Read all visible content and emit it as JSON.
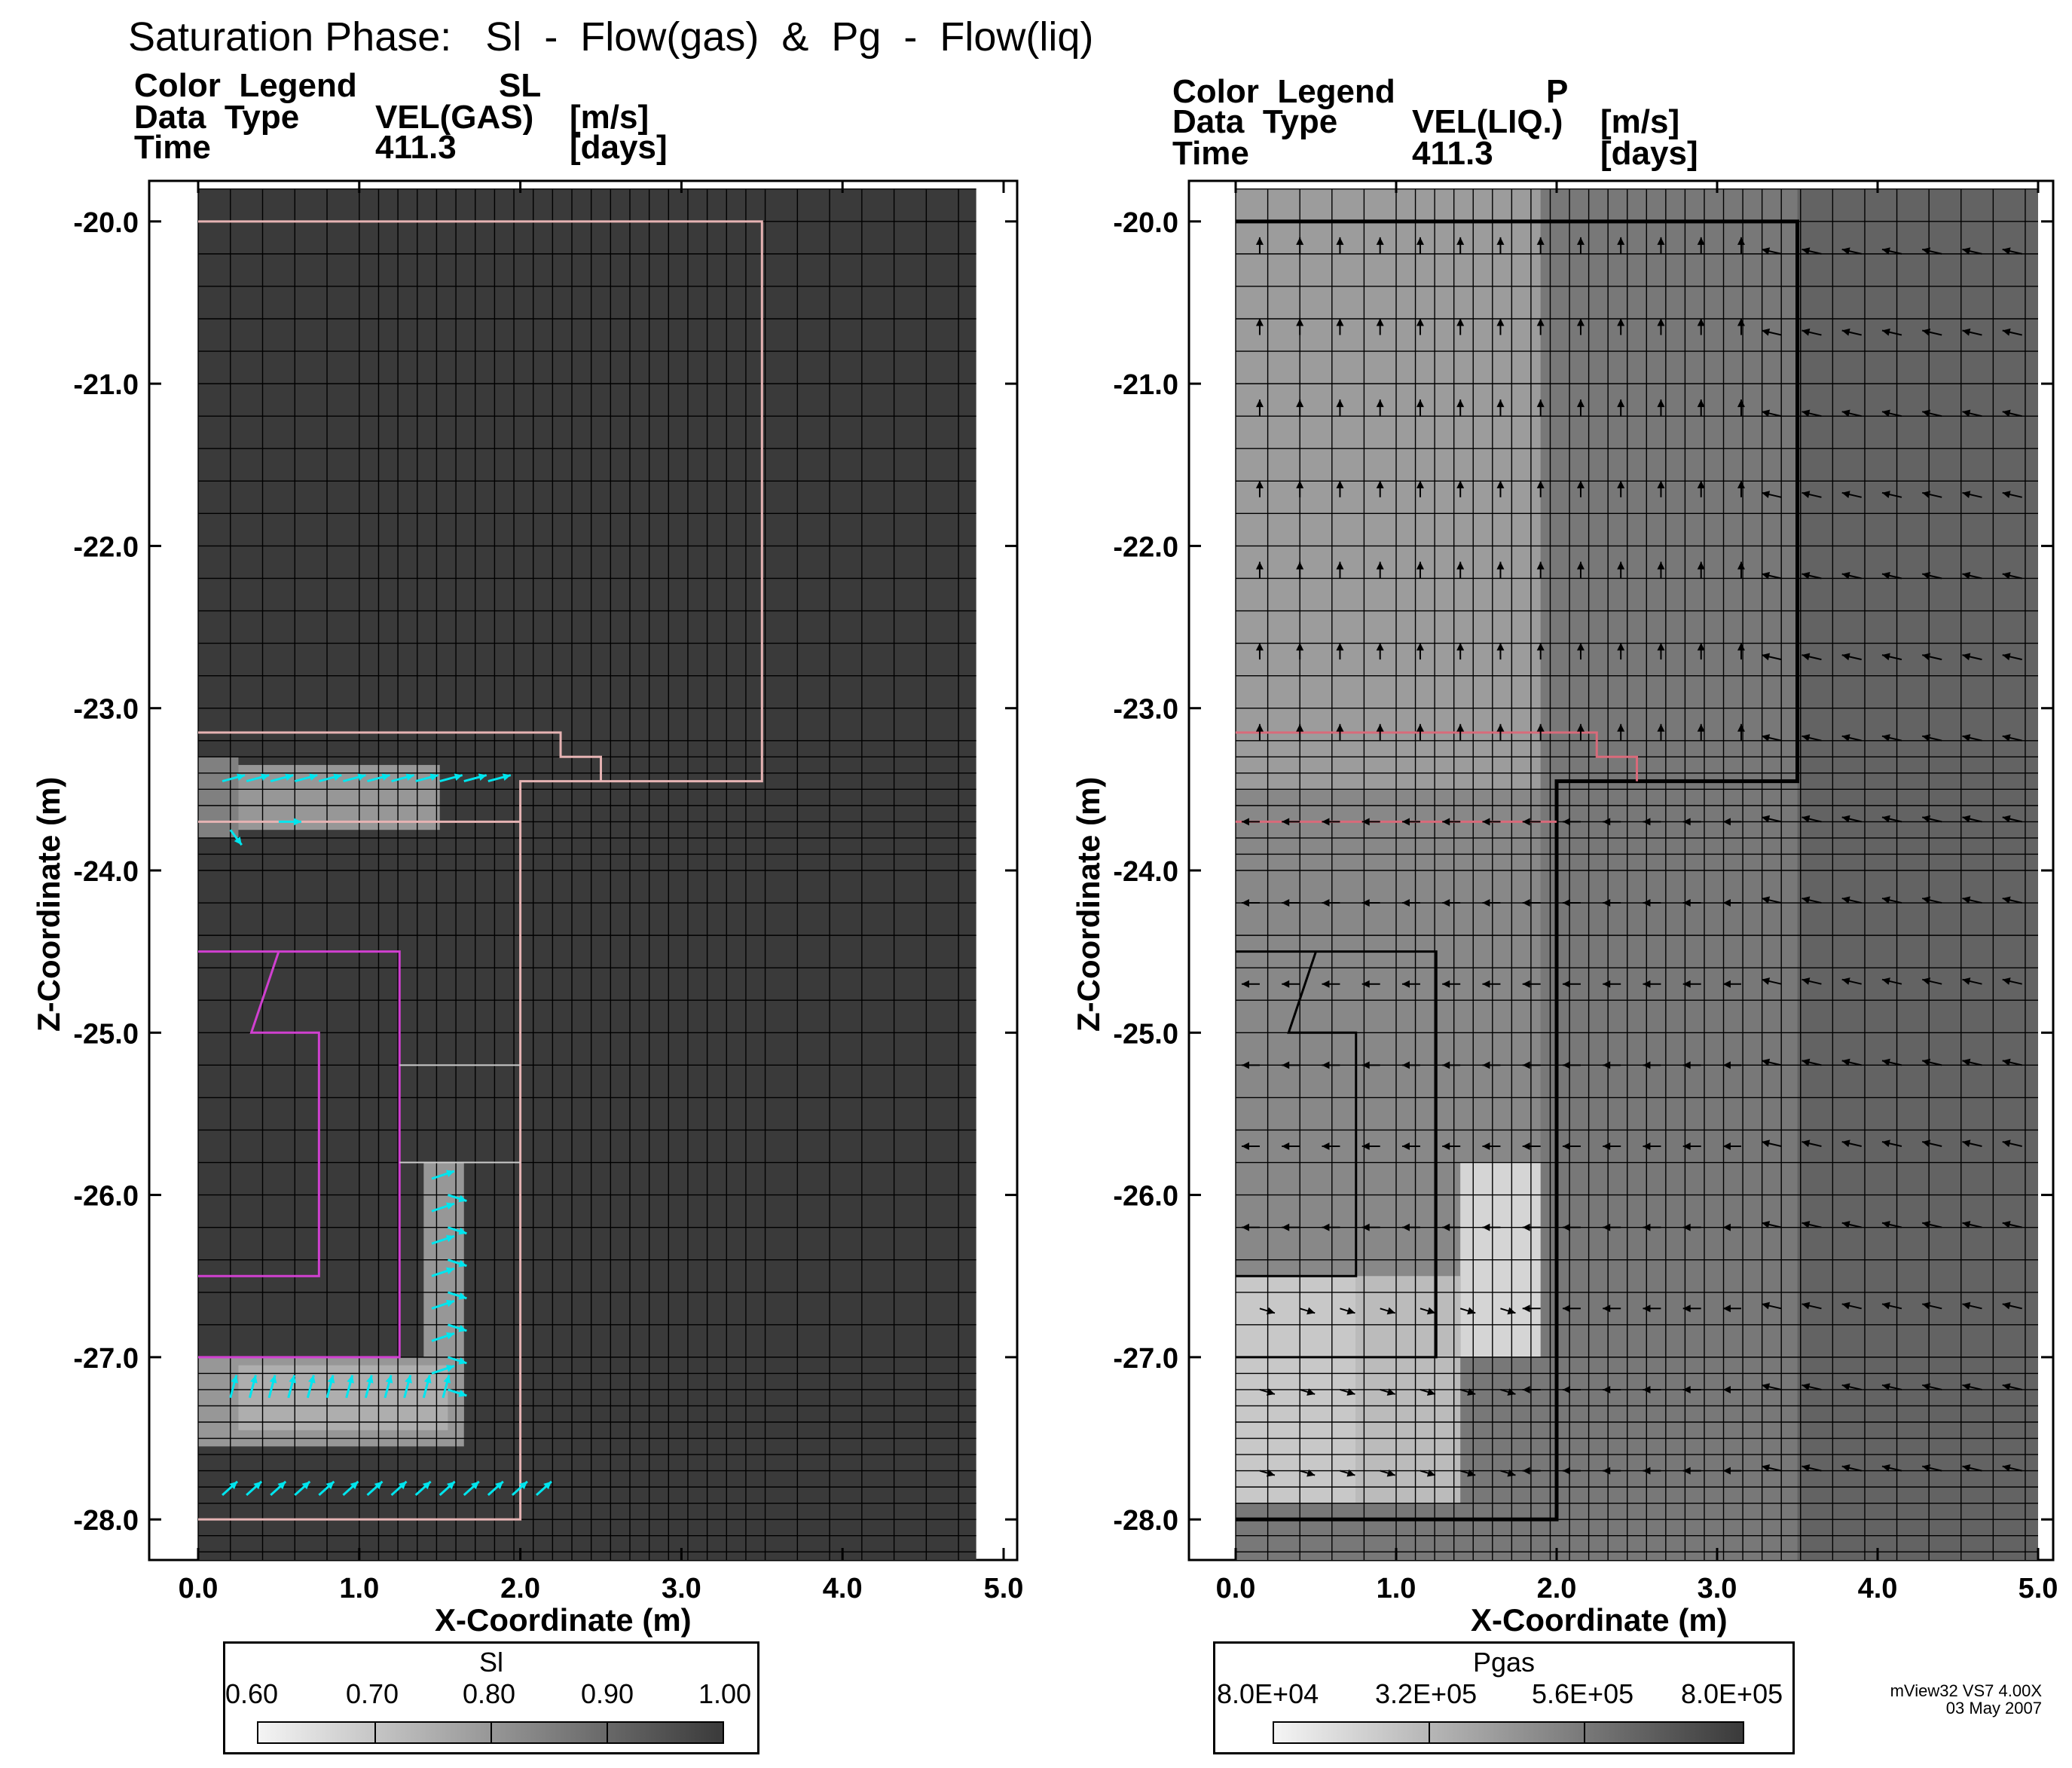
{
  "figure_title": "Saturation Phase:   Sl  -  Flow(gas)  &  Pg  -  Flow(liq)",
  "stamp": {
    "line1": "mView32  VS7  4.00X",
    "line2": "03  May  2007"
  },
  "chart_data": [
    {
      "type": "heatmap",
      "panel": "left",
      "header": {
        "color_legend_label": "Color  Legend",
        "color_legend_value": "SL",
        "data_type_label": "Data  Type",
        "data_type_value": "VEL(GAS)",
        "data_type_unit": "[m/s]",
        "time_label": "Time",
        "time_value": "411.3",
        "time_unit": "[days]"
      },
      "xlabel": "X-Coordinate  (m)",
      "ylabel": "Z-Coordinate  (m)",
      "xlim": [
        0.0,
        5.0
      ],
      "ylim": [
        -28.25,
        -19.75
      ],
      "xticks": [
        "0.0",
        "1.0",
        "2.0",
        "3.0",
        "4.0",
        "5.0"
      ],
      "yticks": [
        "-20.0",
        "-21.0",
        "-22.0",
        "-23.0",
        "-24.0",
        "-25.0",
        "-26.0",
        "-27.0",
        "-28.0"
      ],
      "colorbar": {
        "title": "Sl",
        "ticks": [
          "0.60",
          "0.70",
          "0.80",
          "0.90",
          "1.00"
        ],
        "range": [
          0.6,
          1.0
        ]
      },
      "background_value": 1.0,
      "regions": [
        {
          "x": [
            0.0,
            1.5
          ],
          "z": [
            -23.75,
            -23.35
          ],
          "value": 0.8
        },
        {
          "x": [
            0.0,
            0.25
          ],
          "z": [
            -23.8,
            -23.3
          ],
          "value": 0.85
        },
        {
          "x": [
            1.4,
            1.65
          ],
          "z": [
            -27.4,
            -25.8
          ],
          "value": 0.8
        },
        {
          "x": [
            0.0,
            1.65
          ],
          "z": [
            -27.55,
            -27.0
          ],
          "value": 0.8
        },
        {
          "x": [
            0.25,
            1.55
          ],
          "z": [
            -27.45,
            -27.05
          ],
          "value": 0.75
        }
      ],
      "vector_field": "gas velocity arrows (cyan) in desaturated zones"
    },
    {
      "type": "heatmap",
      "panel": "right",
      "header": {
        "color_legend_label": "Color  Legend",
        "color_legend_value": "P",
        "data_type_label": "Data  Type",
        "data_type_value": "VEL(LIQ.)",
        "data_type_unit": "[m/s]",
        "time_label": "Time",
        "time_value": "411.3",
        "time_unit": "[days]"
      },
      "xlabel": "X-Coordinate  (m)",
      "ylabel": "Z-Coordinate  (m)",
      "xlim": [
        0.0,
        5.0
      ],
      "ylim": [
        -28.25,
        -19.75
      ],
      "xticks": [
        "0.0",
        "1.0",
        "2.0",
        "3.0",
        "4.0",
        "5.0"
      ],
      "yticks": [
        "-20.0",
        "-21.0",
        "-22.0",
        "-23.0",
        "-24.0",
        "-25.0",
        "-26.0",
        "-27.0",
        "-28.0"
      ],
      "colorbar": {
        "title": "Pgas",
        "ticks": [
          "8.0E+04",
          "3.2E+05",
          "5.6E+05",
          "8.0E+05"
        ],
        "range": [
          80000,
          800000
        ]
      },
      "background_value": 560000,
      "regions": [
        {
          "x": [
            0.0,
            1.9
          ],
          "z": [
            -23.5,
            -19.8
          ],
          "value": 420000
        },
        {
          "x": [
            0.0,
            1.9
          ],
          "z": [
            -26.5,
            -23.5
          ],
          "value": 500000
        },
        {
          "x": [
            0.0,
            0.75
          ],
          "z": [
            -27.9,
            -26.5
          ],
          "value": 250000
        },
        {
          "x": [
            1.4,
            1.9
          ],
          "z": [
            -27.0,
            -25.8
          ],
          "value": 200000
        },
        {
          "x": [
            0.75,
            1.4
          ],
          "z": [
            -27.9,
            -26.5
          ],
          "value": 300000
        }
      ],
      "vector_field": "liquid velocity arrows (black)"
    }
  ]
}
